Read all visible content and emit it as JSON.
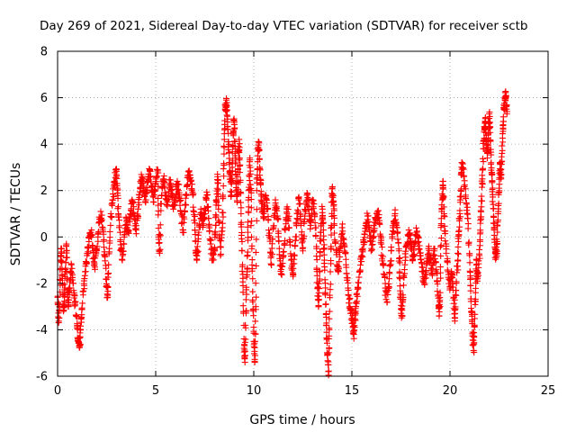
{
  "chart_data": {
    "type": "scatter",
    "title": "Day 269 of 2021, Sidereal Day-to-day VTEC variation (SDTVAR) for receiver sctb",
    "xlabel": "GPS time / hours",
    "ylabel": "SDTVAR / TECUs",
    "xlim": [
      0,
      25
    ],
    "ylim": [
      -6,
      8
    ],
    "xticks": [
      "0",
      "5",
      "10",
      "15",
      "20",
      "25"
    ],
    "yticks": [
      "-6",
      "-4",
      "-2",
      "0",
      "2",
      "4",
      "6",
      "8"
    ],
    "grid": true,
    "marker": "+",
    "color": "#ff0000",
    "series": [
      {
        "name": "SDTVAR",
        "points": [
          [
            0.0,
            -2.6
          ],
          [
            0.05,
            -3.5
          ],
          [
            0.1,
            -3.0
          ],
          [
            0.15,
            -1.0
          ],
          [
            0.2,
            -0.5
          ],
          [
            0.25,
            -2.0
          ],
          [
            0.3,
            -3.2
          ],
          [
            0.35,
            -2.5
          ],
          [
            0.4,
            -1.5
          ],
          [
            0.45,
            -0.3
          ],
          [
            0.5,
            -2.4
          ],
          [
            0.55,
            -3.0
          ],
          [
            0.6,
            -2.2
          ],
          [
            0.7,
            -1.2
          ],
          [
            0.8,
            -2.0
          ],
          [
            0.9,
            -2.8
          ],
          [
            1.0,
            -3.8
          ],
          [
            1.05,
            -4.5
          ],
          [
            1.1,
            -4.7
          ],
          [
            1.15,
            -4.3
          ],
          [
            1.2,
            -3.5
          ],
          [
            1.3,
            -2.5
          ],
          [
            1.4,
            -1.5
          ],
          [
            1.5,
            -0.8
          ],
          [
            1.6,
            -0.2
          ],
          [
            1.7,
            0.2
          ],
          [
            1.8,
            -0.6
          ],
          [
            1.9,
            -1.3
          ],
          [
            2.0,
            -0.5
          ],
          [
            2.1,
            0.6
          ],
          [
            2.2,
            1.1
          ],
          [
            2.3,
            0.3
          ],
          [
            2.4,
            -0.8
          ],
          [
            2.5,
            -2.1
          ],
          [
            2.55,
            -2.6
          ],
          [
            2.6,
            -1.2
          ],
          [
            2.7,
            0.5
          ],
          [
            2.8,
            1.6
          ],
          [
            2.9,
            2.4
          ],
          [
            3.0,
            2.9
          ],
          [
            3.05,
            2.1
          ],
          [
            3.1,
            1.0
          ],
          [
            3.2,
            -0.2
          ],
          [
            3.3,
            -1.0
          ],
          [
            3.4,
            0.0
          ],
          [
            3.5,
            0.8
          ],
          [
            3.6,
            0.2
          ],
          [
            3.7,
            1.0
          ],
          [
            3.8,
            1.6
          ],
          [
            3.9,
            0.9
          ],
          [
            4.0,
            0.3
          ],
          [
            4.1,
            1.2
          ],
          [
            4.2,
            2.1
          ],
          [
            4.3,
            2.6
          ],
          [
            4.4,
            2.0
          ],
          [
            4.5,
            1.6
          ],
          [
            4.6,
            2.4
          ],
          [
            4.7,
            2.9
          ],
          [
            4.8,
            2.2
          ],
          [
            4.9,
            1.5
          ],
          [
            5.0,
            2.3
          ],
          [
            5.1,
            2.9
          ],
          [
            5.15,
            0.0
          ],
          [
            5.2,
            -0.7
          ],
          [
            5.3,
            1.8
          ],
          [
            5.4,
            2.5
          ],
          [
            5.5,
            1.8
          ],
          [
            5.6,
            1.5
          ],
          [
            5.7,
            2.3
          ],
          [
            5.8,
            2.0
          ],
          [
            5.9,
            1.2
          ],
          [
            6.0,
            1.6
          ],
          [
            6.1,
            2.4
          ],
          [
            6.2,
            1.9
          ],
          [
            6.3,
            1.0
          ],
          [
            6.4,
            0.3
          ],
          [
            6.5,
            1.4
          ],
          [
            6.6,
            2.2
          ],
          [
            6.7,
            2.8
          ],
          [
            6.8,
            2.4
          ],
          [
            6.9,
            1.8
          ],
          [
            7.0,
            0.6
          ],
          [
            7.05,
            -0.7
          ],
          [
            7.1,
            -1.0
          ],
          [
            7.2,
            0.2
          ],
          [
            7.3,
            1.2
          ],
          [
            7.4,
            0.5
          ],
          [
            7.5,
            1.0
          ],
          [
            7.6,
            1.8
          ],
          [
            7.7,
            0.8
          ],
          [
            7.8,
            -0.3
          ],
          [
            7.9,
            -1.0
          ],
          [
            8.0,
            -0.5
          ],
          [
            8.05,
            0.5
          ],
          [
            8.1,
            1.6
          ],
          [
            8.15,
            2.6
          ],
          [
            8.2,
            1.2
          ],
          [
            8.3,
            -0.8
          ],
          [
            8.4,
            0.4
          ],
          [
            8.45,
            2.2
          ],
          [
            8.5,
            4.2
          ],
          [
            8.55,
            5.6
          ],
          [
            8.6,
            5.9
          ],
          [
            8.65,
            5.2
          ],
          [
            8.7,
            4.1
          ],
          [
            8.75,
            3.2
          ],
          [
            8.8,
            2.6
          ],
          [
            8.85,
            1.8
          ],
          [
            8.9,
            3.0
          ],
          [
            8.95,
            4.5
          ],
          [
            9.0,
            5.0
          ],
          [
            9.05,
            3.5
          ],
          [
            9.1,
            2.3
          ],
          [
            9.15,
            1.5
          ],
          [
            9.2,
            2.8
          ],
          [
            9.25,
            4.2
          ],
          [
            9.3,
            3.1
          ],
          [
            9.35,
            1.0
          ],
          [
            9.4,
            -0.6
          ],
          [
            9.45,
            -2.1
          ],
          [
            9.5,
            -4.8
          ],
          [
            9.55,
            -5.4
          ],
          [
            9.6,
            -3.2
          ],
          [
            9.65,
            -1.5
          ],
          [
            9.7,
            0.2
          ],
          [
            9.75,
            2.0
          ],
          [
            9.8,
            3.4
          ],
          [
            9.85,
            2.0
          ],
          [
            9.9,
            -0.5
          ],
          [
            9.95,
            -2.8
          ],
          [
            10.0,
            -4.5
          ],
          [
            10.05,
            -5.4
          ],
          [
            10.1,
            -3.0
          ],
          [
            10.15,
            2.0
          ],
          [
            10.2,
            3.5
          ],
          [
            10.25,
            4.1
          ],
          [
            10.3,
            3.0
          ],
          [
            10.35,
            2.3
          ],
          [
            10.4,
            1.5
          ],
          [
            10.5,
            0.8
          ],
          [
            10.6,
            1.8
          ],
          [
            10.7,
            1.2
          ],
          [
            10.8,
            0.0
          ],
          [
            10.9,
            -1.2
          ],
          [
            11.0,
            0.4
          ],
          [
            11.1,
            1.6
          ],
          [
            11.2,
            0.9
          ],
          [
            11.3,
            -0.5
          ],
          [
            11.4,
            -1.6
          ],
          [
            11.5,
            -0.8
          ],
          [
            11.6,
            0.3
          ],
          [
            11.7,
            1.3
          ],
          [
            11.8,
            0.4
          ],
          [
            11.9,
            -1.0
          ],
          [
            12.0,
            -1.7
          ],
          [
            12.1,
            -0.4
          ],
          [
            12.2,
            0.8
          ],
          [
            12.3,
            1.6
          ],
          [
            12.4,
            0.5
          ],
          [
            12.5,
            -0.6
          ],
          [
            12.6,
            0.9
          ],
          [
            12.7,
            1.8
          ],
          [
            12.8,
            1.3
          ],
          [
            12.9,
            0.5
          ],
          [
            13.0,
            1.6
          ],
          [
            13.1,
            1.0
          ],
          [
            13.2,
            -0.5
          ],
          [
            13.25,
            -2.2
          ],
          [
            13.3,
            -3.0
          ],
          [
            13.35,
            -1.5
          ],
          [
            13.4,
            0.2
          ],
          [
            13.5,
            1.2
          ],
          [
            13.55,
            0.3
          ],
          [
            13.6,
            -1.0
          ],
          [
            13.65,
            -2.5
          ],
          [
            13.7,
            -3.8
          ],
          [
            13.75,
            -5.0
          ],
          [
            13.8,
            -5.8
          ],
          [
            13.85,
            -4.0
          ],
          [
            13.9,
            -1.5
          ],
          [
            13.95,
            0.5
          ],
          [
            14.0,
            2.1
          ],
          [
            14.05,
            1.5
          ],
          [
            14.1,
            0.5
          ],
          [
            14.2,
            -0.6
          ],
          [
            14.3,
            -1.5
          ],
          [
            14.4,
            -0.5
          ],
          [
            14.5,
            0.4
          ],
          [
            14.6,
            -0.3
          ],
          [
            14.7,
            -1.2
          ],
          [
            14.8,
            -2.2
          ],
          [
            14.9,
            -3.0
          ],
          [
            15.0,
            -3.5
          ],
          [
            15.05,
            -3.9
          ],
          [
            15.1,
            -4.2
          ],
          [
            15.15,
            -3.6
          ],
          [
            15.2,
            -3.0
          ],
          [
            15.3,
            -2.2
          ],
          [
            15.4,
            -1.5
          ],
          [
            15.5,
            -0.8
          ],
          [
            15.6,
            -0.2
          ],
          [
            15.7,
            0.5
          ],
          [
            15.8,
            0.9
          ],
          [
            15.9,
            0.3
          ],
          [
            16.0,
            -0.5
          ],
          [
            16.1,
            0.2
          ],
          [
            16.2,
            0.8
          ],
          [
            16.3,
            1.1
          ],
          [
            16.4,
            0.6
          ],
          [
            16.5,
            -0.3
          ],
          [
            16.6,
            -1.2
          ],
          [
            16.7,
            -2.2
          ],
          [
            16.8,
            -2.8
          ],
          [
            16.9,
            -1.8
          ],
          [
            17.0,
            -0.6
          ],
          [
            17.1,
            0.4
          ],
          [
            17.2,
            1.0
          ],
          [
            17.3,
            0.4
          ],
          [
            17.4,
            -0.6
          ],
          [
            17.45,
            -1.8
          ],
          [
            17.5,
            -3.1
          ],
          [
            17.55,
            -3.4
          ],
          [
            17.6,
            -2.5
          ],
          [
            17.7,
            -1.2
          ],
          [
            17.8,
            -0.3
          ],
          [
            17.9,
            0.3
          ],
          [
            18.0,
            -0.2
          ],
          [
            18.1,
            -1.0
          ],
          [
            18.2,
            -0.4
          ],
          [
            18.3,
            0.2
          ],
          [
            18.4,
            -0.2
          ],
          [
            18.5,
            -0.8
          ],
          [
            18.6,
            -1.5
          ],
          [
            18.7,
            -2.0
          ],
          [
            18.8,
            -1.2
          ],
          [
            18.9,
            -0.5
          ],
          [
            19.0,
            -1.0
          ],
          [
            19.1,
            -1.6
          ],
          [
            19.2,
            -0.6
          ],
          [
            19.3,
            -1.4
          ],
          [
            19.4,
            -2.5
          ],
          [
            19.45,
            -3.4
          ],
          [
            19.5,
            -2.4
          ],
          [
            19.55,
            0.5
          ],
          [
            19.6,
            1.6
          ],
          [
            19.65,
            2.4
          ],
          [
            19.7,
            1.0
          ],
          [
            19.8,
            -0.4
          ],
          [
            19.9,
            -1.5
          ],
          [
            20.0,
            -2.2
          ],
          [
            20.1,
            -1.6
          ],
          [
            20.2,
            -2.6
          ],
          [
            20.25,
            -3.5
          ],
          [
            20.3,
            -2.3
          ],
          [
            20.4,
            -1.0
          ],
          [
            20.45,
            0.1
          ],
          [
            20.5,
            1.0
          ],
          [
            20.55,
            2.0
          ],
          [
            20.6,
            3.2
          ],
          [
            20.7,
            2.6
          ],
          [
            20.8,
            1.8
          ],
          [
            20.9,
            0.8
          ],
          [
            21.0,
            -0.8
          ],
          [
            21.05,
            -2.1
          ],
          [
            21.1,
            -3.2
          ],
          [
            21.15,
            -4.1
          ],
          [
            21.2,
            -4.9
          ],
          [
            21.25,
            -3.8
          ],
          [
            21.3,
            -2.4
          ],
          [
            21.35,
            -1.0
          ],
          [
            21.4,
            -1.8
          ],
          [
            21.5,
            -0.8
          ],
          [
            21.55,
            0.2
          ],
          [
            21.6,
            1.3
          ],
          [
            21.65,
            2.5
          ],
          [
            21.7,
            3.8
          ],
          [
            21.75,
            4.6
          ],
          [
            21.8,
            5.1
          ],
          [
            21.85,
            4.2
          ],
          [
            21.9,
            3.4
          ],
          [
            21.95,
            4.4
          ],
          [
            22.0,
            5.3
          ],
          [
            22.05,
            4.5
          ],
          [
            22.1,
            3.2
          ],
          [
            22.15,
            2.4
          ],
          [
            22.2,
            1.4
          ],
          [
            22.25,
            0.3
          ],
          [
            22.3,
            -0.5
          ],
          [
            22.35,
            -0.9
          ],
          [
            22.4,
            -0.2
          ],
          [
            22.45,
            1.0
          ],
          [
            22.5,
            2.1
          ],
          [
            22.55,
            3.2
          ],
          [
            22.6,
            2.5
          ],
          [
            22.65,
            3.6
          ],
          [
            22.7,
            4.8
          ],
          [
            22.75,
            5.5
          ],
          [
            22.8,
            5.9
          ],
          [
            22.85,
            6.1
          ],
          [
            22.9,
            5.3
          ]
        ]
      }
    ]
  }
}
